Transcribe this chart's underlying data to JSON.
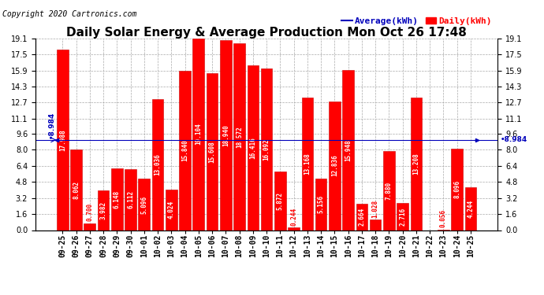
{
  "title": "Daily Solar Energy & Average Production Mon Oct 26 17:48",
  "copyright": "Copyright 2020 Cartronics.com",
  "legend_avg": "Average(kWh)",
  "legend_daily": "Daily(kWh)",
  "average_value": 8.984,
  "categories": [
    "09-25",
    "09-26",
    "09-27",
    "09-28",
    "09-29",
    "09-30",
    "10-01",
    "10-02",
    "10-03",
    "10-04",
    "10-05",
    "10-06",
    "10-07",
    "10-08",
    "10-09",
    "10-10",
    "10-11",
    "10-12",
    "10-13",
    "10-14",
    "10-15",
    "10-16",
    "10-17",
    "10-18",
    "10-19",
    "10-20",
    "10-21",
    "10-22",
    "10-23",
    "10-24",
    "10-25"
  ],
  "values": [
    17.988,
    8.062,
    0.7,
    3.982,
    6.148,
    6.112,
    5.096,
    13.036,
    4.024,
    15.84,
    19.104,
    15.608,
    18.94,
    18.572,
    16.416,
    16.092,
    5.872,
    0.244,
    13.168,
    5.156,
    12.836,
    15.948,
    2.664,
    1.028,
    7.88,
    2.716,
    13.208,
    0.0,
    0.056,
    8.096,
    4.244
  ],
  "bar_color": "#ff0000",
  "bar_edge_color": "#cc0000",
  "avg_line_color": "#0000bb",
  "avg_label_color": "#0000bb",
  "title_color": "#000000",
  "background_color": "#ffffff",
  "plot_bg_color": "#ffffff",
  "grid_color": "#aaaaaa",
  "ylim": [
    0.0,
    19.1
  ],
  "yticks": [
    0.0,
    1.6,
    3.2,
    4.8,
    6.4,
    8.0,
    9.6,
    11.1,
    12.7,
    14.3,
    15.9,
    17.5,
    19.1
  ],
  "value_fontsize": 5.5,
  "title_fontsize": 11,
  "tick_fontsize": 7,
  "copyright_fontsize": 7,
  "legend_fontsize": 8
}
